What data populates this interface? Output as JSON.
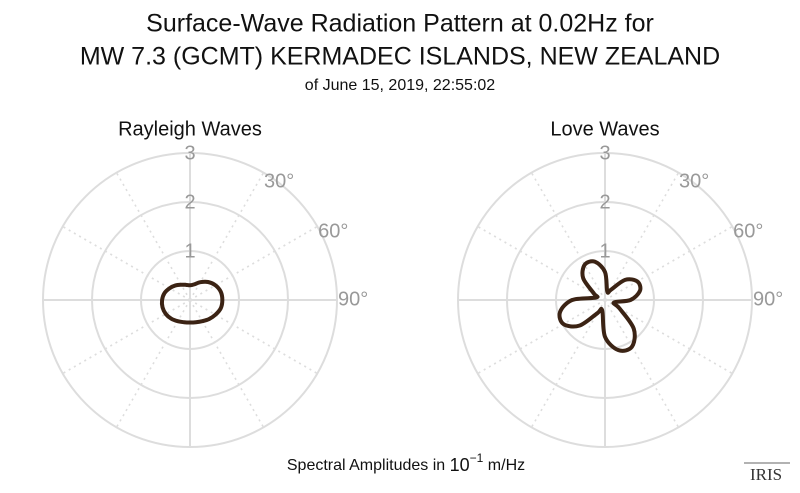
{
  "header": {
    "title_lines": [
      "Surface-Wave Radiation Pattern at 0.02Hz for",
      "MW 7.3 (GCMT) KERMADEC ISLANDS, NEW ZEALAND"
    ],
    "subtitle": "of June 15, 2019, 22:55:02"
  },
  "chart_data": [
    {
      "type": "polar",
      "title": "Rayleigh Waves",
      "theta_zero": "N",
      "theta_direction": "clockwise",
      "theta": [
        0,
        15,
        30,
        45,
        60,
        75,
        90,
        105,
        120,
        135,
        150,
        165,
        180,
        195,
        210,
        225,
        240,
        255,
        270,
        285,
        300,
        315,
        330,
        345
      ],
      "values": [
        0.3,
        0.33,
        0.42,
        0.52,
        0.6,
        0.65,
        0.66,
        0.65,
        0.6,
        0.55,
        0.5,
        0.47,
        0.46,
        0.47,
        0.5,
        0.54,
        0.57,
        0.58,
        0.57,
        0.54,
        0.48,
        0.42,
        0.36,
        0.32
      ],
      "color": "#3b2314",
      "rlim": [
        0,
        3
      ],
      "rticks": [
        1,
        2,
        3
      ],
      "thetaticks": [
        {
          "value": 30,
          "label": "30°"
        },
        {
          "value": 60,
          "label": "60°"
        },
        {
          "value": 90,
          "label": "90°"
        }
      ],
      "grid": true
    },
    {
      "type": "polar",
      "title": "Love Waves",
      "theta_zero": "N",
      "theta_direction": "clockwise",
      "theta": [
        0,
        15,
        30,
        45,
        60,
        75,
        90,
        105,
        120,
        135,
        150,
        165,
        180,
        195,
        210,
        225,
        240,
        255,
        270,
        285,
        300,
        315,
        330,
        345
      ],
      "values": [
        0.57,
        0.18,
        0.24,
        0.58,
        0.76,
        0.74,
        0.52,
        0.19,
        0.34,
        0.83,
        1.1,
        1.06,
        0.75,
        0.22,
        0.31,
        0.74,
        0.98,
        0.95,
        0.67,
        0.19,
        0.26,
        0.63,
        0.83,
        0.81
      ],
      "color": "#3b2314",
      "rlim": [
        0,
        3
      ],
      "rticks": [
        1,
        2,
        3
      ],
      "thetaticks": [
        {
          "value": 30,
          "label": "30°"
        },
        {
          "value": 60,
          "label": "60°"
        },
        {
          "value": 90,
          "label": "90°"
        }
      ],
      "grid": true
    }
  ],
  "footer": {
    "prefix": "Spectral Amplitudes in ",
    "base": "10",
    "exponent": "−1",
    "unit": " m/Hz"
  },
  "logo": "IRIS"
}
